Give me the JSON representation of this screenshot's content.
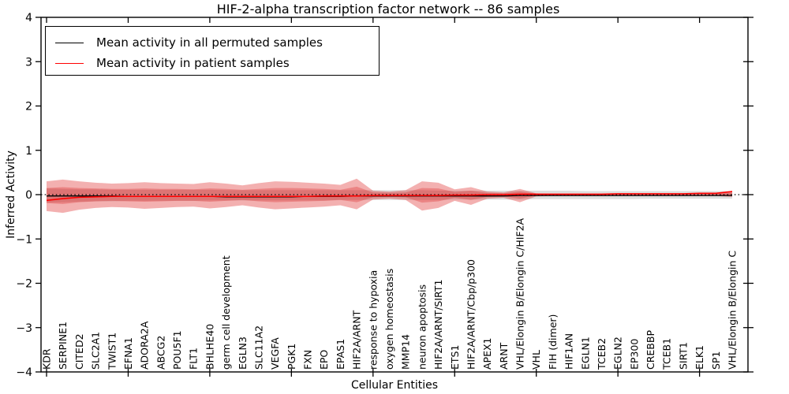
{
  "chart_data": {
    "type": "line",
    "title": "HIF-2-alpha transcription factor network -- 86 samples",
    "xlabel": "Cellular Entities",
    "ylabel": "Inferred Activity",
    "ylim": [
      -4,
      4
    ],
    "y_ticks": [
      4,
      3,
      2,
      1,
      0,
      -1,
      -2,
      -3,
      -4
    ],
    "x_major_tick_indices": [
      0,
      5,
      10,
      15,
      20,
      25,
      30,
      35,
      40
    ],
    "grid": false,
    "legend_position": "upper-left",
    "zero_reference_line": 0,
    "categories": [
      "KDR",
      "SERPINE1",
      "CITED2",
      "SLC2A1",
      "TWIST1",
      "EFNA1",
      "ADORA2A",
      "ABCG2",
      "POU5F1",
      "FLT1",
      "BHLHE40",
      "germ cell development",
      "EGLN3",
      "SLC11A2",
      "VEGFA",
      "PGK1",
      "FXN",
      "EPO",
      "EPAS1",
      "HIF2A/ARNT",
      "response to hypoxia",
      "oxygen homeostasis",
      "MMP14",
      "neuron apoptosis",
      "HIF2A/ARNT/SIRT1",
      "ETS1",
      "HIF2A/ARNT/Cbp/p300",
      "APEX1",
      "ARNT",
      "VHL/Elongin B/Elongin C/HIF2A",
      "VHL",
      "FIH (dimer)",
      "HIF1AN",
      "EGLN1",
      "TCEB2",
      "EGLN2",
      "EP300",
      "CREBBP",
      "TCEB1",
      "SIRT1",
      "ELK1",
      "SP1",
      "VHL/Elongin B/Elongin C"
    ],
    "series": [
      {
        "name": "Mean activity in all permuted samples",
        "color": "#000000",
        "values": [
          -0.03,
          -0.03,
          -0.03,
          -0.03,
          -0.03,
          -0.04,
          -0.04,
          -0.04,
          -0.04,
          -0.04,
          -0.04,
          -0.05,
          -0.05,
          -0.05,
          -0.05,
          -0.05,
          -0.04,
          -0.04,
          -0.04,
          -0.03,
          -0.03,
          -0.03,
          -0.03,
          -0.03,
          -0.03,
          -0.03,
          -0.03,
          -0.03,
          -0.03,
          -0.02,
          -0.02,
          -0.02,
          -0.02,
          -0.02,
          -0.02,
          -0.02,
          -0.02,
          -0.02,
          -0.02,
          -0.02,
          -0.02,
          -0.02,
          -0.02
        ]
      },
      {
        "name": "Mean activity in patient samples",
        "color": "#ff0000",
        "values": [
          -0.13,
          -0.09,
          -0.06,
          -0.05,
          -0.04,
          -0.04,
          -0.04,
          -0.04,
          -0.04,
          -0.04,
          -0.04,
          -0.04,
          -0.04,
          -0.04,
          -0.04,
          -0.04,
          -0.04,
          -0.03,
          -0.03,
          -0.03,
          -0.02,
          -0.02,
          -0.02,
          -0.02,
          -0.02,
          -0.01,
          -0.01,
          0,
          0,
          0.01,
          0.01,
          0.01,
          0.01,
          0.01,
          0.01,
          0.02,
          0.02,
          0.02,
          0.02,
          0.02,
          0.03,
          0.03,
          0.07
        ]
      }
    ],
    "bands": [
      {
        "name": "permuted-samples-band",
        "color": "rgba(125,125,125,0.25)",
        "hi": [
          0.14,
          0.13,
          0.12,
          0.12,
          0.11,
          0.11,
          0.11,
          0.11,
          0.11,
          0.11,
          0.11,
          0.1,
          0.1,
          0.1,
          0.1,
          0.1,
          0.1,
          0.1,
          0.1,
          0.1,
          0.1,
          0.1,
          0.1,
          0.1,
          0.09,
          0.09,
          0.09,
          0.09,
          0.09,
          0.09,
          0.09,
          0.09,
          0.09,
          0.08,
          0.08,
          0.08,
          0.08,
          0.08,
          0.08,
          0.08,
          0.08,
          0.08,
          0.08
        ],
        "lo": [
          -0.18,
          -0.17,
          -0.16,
          -0.15,
          -0.15,
          -0.14,
          -0.14,
          -0.14,
          -0.14,
          -0.14,
          -0.13,
          -0.13,
          -0.13,
          -0.13,
          -0.13,
          -0.13,
          -0.13,
          -0.13,
          -0.12,
          -0.12,
          -0.12,
          -0.12,
          -0.12,
          -0.12,
          -0.12,
          -0.11,
          -0.11,
          -0.11,
          -0.11,
          -0.11,
          -0.1,
          -0.1,
          -0.1,
          -0.1,
          -0.1,
          -0.1,
          -0.1,
          -0.09,
          -0.09,
          -0.09,
          -0.09,
          -0.09,
          -0.09
        ]
      },
      {
        "name": "patient-samples-band-outer",
        "color": "rgba(220,30,30,0.35)",
        "hi": [
          0.3,
          0.34,
          0.3,
          0.27,
          0.25,
          0.26,
          0.28,
          0.26,
          0.25,
          0.24,
          0.28,
          0.25,
          0.21,
          0.26,
          0.3,
          0.29,
          0.27,
          0.25,
          0.22,
          0.36,
          0.09,
          0.07,
          0.1,
          0.3,
          0.27,
          0.12,
          0.17,
          0.07,
          0.05,
          0.13,
          0.03,
          0.02,
          0.02,
          0.02,
          0.02,
          0.02,
          0.02,
          0.02,
          0.02,
          0.02,
          0.02,
          0.03,
          0.08
        ],
        "lo": [
          -0.37,
          -0.41,
          -0.34,
          -0.3,
          -0.28,
          -0.29,
          -0.32,
          -0.3,
          -0.28,
          -0.27,
          -0.31,
          -0.28,
          -0.24,
          -0.29,
          -0.33,
          -0.31,
          -0.29,
          -0.27,
          -0.24,
          -0.33,
          -0.11,
          -0.09,
          -0.12,
          -0.36,
          -0.3,
          -0.14,
          -0.23,
          -0.09,
          -0.07,
          -0.17,
          -0.04,
          -0.03,
          -0.03,
          -0.03,
          -0.03,
          -0.03,
          -0.03,
          -0.03,
          -0.03,
          -0.03,
          -0.03,
          -0.03,
          -0.05
        ]
      },
      {
        "name": "patient-samples-band-inner",
        "color": "rgba(220,30,30,0.30)",
        "hi": [
          0.15,
          0.17,
          0.15,
          0.14,
          0.13,
          0.13,
          0.14,
          0.13,
          0.13,
          0.12,
          0.14,
          0.13,
          0.11,
          0.13,
          0.15,
          0.15,
          0.14,
          0.13,
          0.11,
          0.18,
          0.05,
          0.04,
          0.05,
          0.15,
          0.14,
          0.06,
          0.09,
          0.04,
          0.03,
          0.07,
          0.02,
          0.01,
          0.01,
          0.01,
          0.01,
          0.01,
          0.01,
          0.01,
          0.01,
          0.01,
          0.01,
          0.02,
          0.04
        ],
        "lo": [
          -0.19,
          -0.21,
          -0.17,
          -0.15,
          -0.14,
          -0.15,
          -0.16,
          -0.15,
          -0.14,
          -0.14,
          -0.16,
          -0.14,
          -0.12,
          -0.15,
          -0.17,
          -0.16,
          -0.15,
          -0.14,
          -0.12,
          -0.17,
          -0.06,
          -0.05,
          -0.06,
          -0.18,
          -0.15,
          -0.07,
          -0.12,
          -0.05,
          -0.04,
          -0.09,
          -0.02,
          -0.02,
          -0.02,
          -0.02,
          -0.02,
          -0.02,
          -0.02,
          -0.02,
          -0.02,
          -0.02,
          -0.02,
          -0.02,
          -0.03
        ]
      }
    ],
    "legend": {
      "entries": [
        {
          "label": "Mean activity in all permuted samples",
          "color": "#000000"
        },
        {
          "label": "Mean activity in patient samples",
          "color": "#ff0000"
        }
      ]
    }
  }
}
